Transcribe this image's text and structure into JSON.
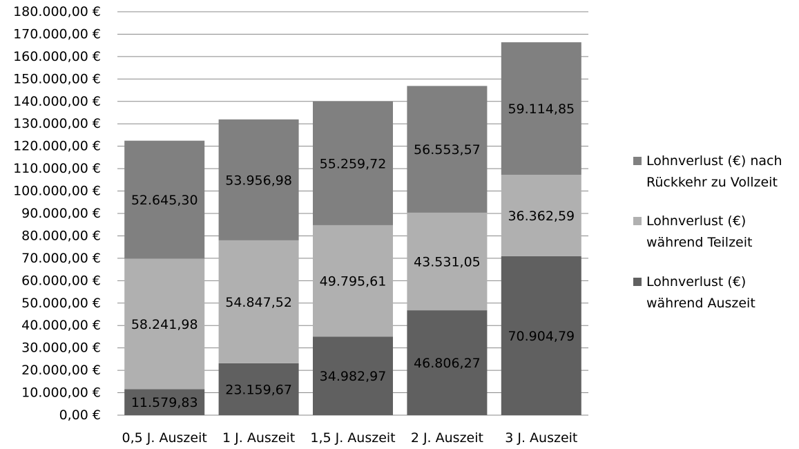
{
  "chart_data": {
    "type": "bar",
    "stacked": true,
    "categories": [
      "0,5 J. Auszeit",
      "1 J. Auszeit",
      "1,5 J. Auszeit",
      "2 J. Auszeit",
      "3 J. Auszeit"
    ],
    "series": [
      {
        "name": "Lohnverlust (€) während Auszeit",
        "legend_lines": [
          "Lohnverlust (€)",
          "während Auszeit"
        ],
        "color": "#606060",
        "values": [
          11579.83,
          23159.67,
          34982.97,
          46806.27,
          70904.79
        ],
        "labels": [
          "11.579,83",
          "23.159,67",
          "34.982,97",
          "46.806,27",
          "70.904,79"
        ]
      },
      {
        "name": "Lohnverlust (€) während Teilzeit",
        "legend_lines": [
          "Lohnverlust (€)",
          "während Teilzeit"
        ],
        "color": "#b0b0b0",
        "values": [
          58241.98,
          54847.52,
          49795.61,
          43531.05,
          36362.59
        ],
        "labels": [
          "58.241,98",
          "54.847,52",
          "49.795,61",
          "43.531,05",
          "36.362,59"
        ]
      },
      {
        "name": "Lohnverlust (€) nach Rückkehr zu Vollzeit",
        "legend_lines": [
          "Lohnverlust (€) nach",
          "Rückkehr zu Vollzeit"
        ],
        "color": "#808080",
        "values": [
          52645.3,
          53956.98,
          55259.72,
          56553.57,
          59114.85
        ],
        "labels": [
          "52.645,30",
          "53.956,98",
          "55.259,72",
          "56.553,57",
          "59.114,85"
        ]
      }
    ],
    "ylim": [
      0,
      180000
    ],
    "ytick_step": 10000,
    "ytick_labels": [
      "0,00 €",
      "10.000,00 €",
      "20.000,00 €",
      "30.000,00 €",
      "40.000,00 €",
      "50.000,00 €",
      "60.000,00 €",
      "70.000,00 €",
      "80.000,00 €",
      "90.000,00 €",
      "100.000,00 €",
      "110.000,00 €",
      "120.000,00 €",
      "130.000,00 €",
      "140.000,00 €",
      "150.000,00 €",
      "160.000,00 €",
      "170.000,00 €",
      "180.000,00 €"
    ],
    "grid": true,
    "legend_position": "right",
    "legend_order": [
      2,
      1,
      0
    ]
  }
}
